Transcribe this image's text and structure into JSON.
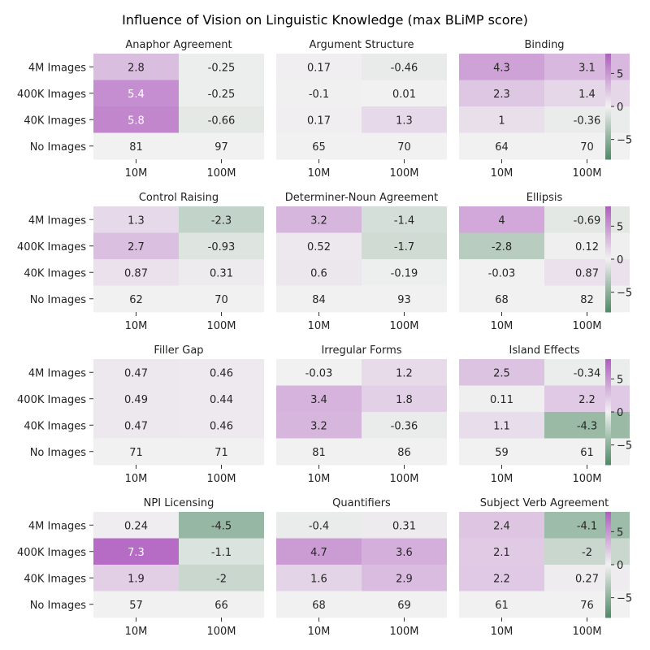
{
  "title": "Influence of Vision on Linguistic Knowledge (max BLiMP score)",
  "colors": {
    "neg": "#4f8a66",
    "neutral": "#f1f1f1",
    "pos": "#b05ec0",
    "text_light": "#ffffff",
    "text_dark": "#262626"
  },
  "chart_data": {
    "type": "heatmap",
    "title": "Influence of Vision on Linguistic Knowledge (max BLiMP score)",
    "row_labels": [
      "4M Images",
      "400K Images",
      "40K Images",
      "No Images"
    ],
    "col_labels": [
      "10M",
      "100M"
    ],
    "color_range": [
      -8,
      8
    ],
    "colorbar_ticks": [
      5,
      0,
      -5
    ],
    "colorbar_tick_labels": [
      "5",
      "0",
      "−5"
    ],
    "panels": [
      {
        "title": "Anaphor Agreement",
        "values": [
          [
            2.8,
            -0.25
          ],
          [
            5.4,
            -0.25
          ],
          [
            5.8,
            -0.66
          ],
          [
            81,
            97
          ]
        ],
        "labels": [
          [
            "2.8",
            "-0.25"
          ],
          [
            "5.4",
            "-0.25"
          ],
          [
            "5.8",
            "-0.66"
          ],
          [
            "81",
            "97"
          ]
        ]
      },
      {
        "title": "Argument Structure",
        "values": [
          [
            0.17,
            -0.46
          ],
          [
            -0.1,
            0.01
          ],
          [
            0.17,
            1.3
          ],
          [
            65,
            70
          ]
        ],
        "labels": [
          [
            "0.17",
            "-0.46"
          ],
          [
            "-0.1",
            "0.01"
          ],
          [
            "0.17",
            "1.3"
          ],
          [
            "65",
            "70"
          ]
        ]
      },
      {
        "title": "Binding",
        "values": [
          [
            4.3,
            3.1
          ],
          [
            2.3,
            1.4
          ],
          [
            1,
            -0.36
          ],
          [
            64,
            70
          ]
        ],
        "labels": [
          [
            "4.3",
            "3.1"
          ],
          [
            "2.3",
            "1.4"
          ],
          [
            "1",
            "-0.36"
          ],
          [
            "64",
            "70"
          ]
        ]
      },
      {
        "title": "Control Raising",
        "values": [
          [
            1.3,
            -2.3
          ],
          [
            2.7,
            -0.93
          ],
          [
            0.87,
            0.31
          ],
          [
            62,
            70
          ]
        ],
        "labels": [
          [
            "1.3",
            "-2.3"
          ],
          [
            "2.7",
            "-0.93"
          ],
          [
            "0.87",
            "0.31"
          ],
          [
            "62",
            "70"
          ]
        ]
      },
      {
        "title": "Determiner-Noun Agreement",
        "values": [
          [
            3.2,
            -1.4
          ],
          [
            0.52,
            -1.7
          ],
          [
            0.6,
            -0.19
          ],
          [
            84,
            93
          ]
        ],
        "labels": [
          [
            "3.2",
            "-1.4"
          ],
          [
            "0.52",
            "-1.7"
          ],
          [
            "0.6",
            "-0.19"
          ],
          [
            "84",
            "93"
          ]
        ]
      },
      {
        "title": "Ellipsis",
        "values": [
          [
            4,
            -0.69
          ],
          [
            -2.8,
            0.12
          ],
          [
            -0.03,
            0.87
          ],
          [
            68,
            82
          ]
        ],
        "labels": [
          [
            "4",
            "-0.69"
          ],
          [
            "-2.8",
            "0.12"
          ],
          [
            "-0.03",
            "0.87"
          ],
          [
            "68",
            "82"
          ]
        ]
      },
      {
        "title": "Filler Gap",
        "values": [
          [
            0.47,
            0.46
          ],
          [
            0.49,
            0.44
          ],
          [
            0.47,
            0.46
          ],
          [
            71,
            71
          ]
        ],
        "labels": [
          [
            "0.47",
            "0.46"
          ],
          [
            "0.49",
            "0.44"
          ],
          [
            "0.47",
            "0.46"
          ],
          [
            "71",
            "71"
          ]
        ]
      },
      {
        "title": "Irregular Forms",
        "values": [
          [
            -0.03,
            1.2
          ],
          [
            3.4,
            1.8
          ],
          [
            3.2,
            -0.36
          ],
          [
            81,
            86
          ]
        ],
        "labels": [
          [
            "-0.03",
            "1.2"
          ],
          [
            "3.4",
            "1.8"
          ],
          [
            "3.2",
            "-0.36"
          ],
          [
            "81",
            "86"
          ]
        ]
      },
      {
        "title": "Island Effects",
        "values": [
          [
            2.5,
            -0.34
          ],
          [
            0.11,
            2.2
          ],
          [
            1.1,
            -4.3
          ],
          [
            59,
            61
          ]
        ],
        "labels": [
          [
            "2.5",
            "-0.34"
          ],
          [
            "0.11",
            "2.2"
          ],
          [
            "1.1",
            "-4.3"
          ],
          [
            "59",
            "61"
          ]
        ]
      },
      {
        "title": "NPI Licensing",
        "values": [
          [
            0.24,
            -4.5
          ],
          [
            7.3,
            -1.1
          ],
          [
            1.9,
            -2
          ],
          [
            57,
            66
          ]
        ],
        "labels": [
          [
            "0.24",
            "-4.5"
          ],
          [
            "7.3",
            "-1.1"
          ],
          [
            "1.9",
            "-2"
          ],
          [
            "57",
            "66"
          ]
        ]
      },
      {
        "title": "Quantifiers",
        "values": [
          [
            -0.4,
            0.31
          ],
          [
            4.7,
            3.6
          ],
          [
            1.6,
            2.9
          ],
          [
            68,
            69
          ]
        ],
        "labels": [
          [
            "-0.4",
            "0.31"
          ],
          [
            "4.7",
            "3.6"
          ],
          [
            "1.6",
            "2.9"
          ],
          [
            "68",
            "69"
          ]
        ]
      },
      {
        "title": "Subject Verb Agreement",
        "values": [
          [
            2.4,
            -4.1
          ],
          [
            2.1,
            -2
          ],
          [
            2.2,
            0.27
          ],
          [
            61,
            76
          ]
        ],
        "labels": [
          [
            "2.4",
            "-4.1"
          ],
          [
            "2.1",
            "-2"
          ],
          [
            "2.2",
            "0.27"
          ],
          [
            "61",
            "76"
          ]
        ]
      }
    ]
  }
}
